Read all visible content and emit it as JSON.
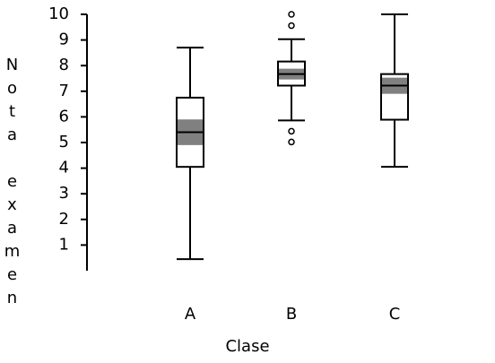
{
  "chart_data": {
    "type": "box",
    "xlabel": "Clase",
    "ylabel": "Nota examen",
    "categories": [
      "A",
      "B",
      "C"
    ],
    "boxes": [
      {
        "whislo": 0.45,
        "q1": 4.05,
        "med": 5.4,
        "q3": 6.75,
        "whishi": 8.7,
        "notch_lo": 4.9,
        "notch_hi": 5.9,
        "fliers": []
      },
      {
        "whislo": 5.86,
        "q1": 7.22,
        "med": 7.67,
        "q3": 8.16,
        "whishi": 9.03,
        "notch_lo": 7.46,
        "notch_hi": 7.88,
        "fliers": [
          10,
          9.56,
          5.44,
          5.02
        ]
      },
      {
        "whislo": 4.05,
        "q1": 5.89,
        "med": 7.22,
        "q3": 7.67,
        "whishi": 10,
        "notch_lo": 6.9,
        "notch_hi": 7.53,
        "fliers": []
      }
    ],
    "line_color": "#000000",
    "notch_color": "#808080",
    "ylim": [
      0,
      10
    ],
    "yticks": [
      1,
      2,
      3,
      4,
      5,
      6,
      7,
      8,
      9,
      10
    ]
  }
}
